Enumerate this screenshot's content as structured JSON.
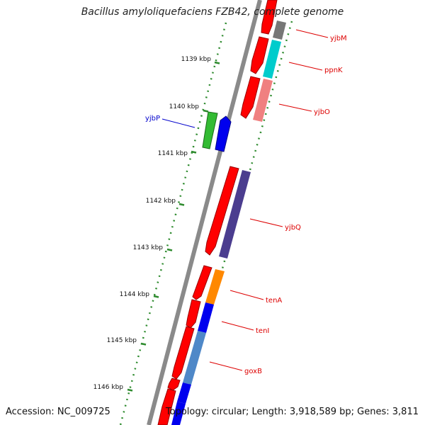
{
  "title": "Bacillus amyloliquefaciens FZB42, complete genome",
  "footer": {
    "accession": "Accession: NC_009725",
    "topology": "Topology: circular; Length: 3,918,589 bp; Genes: 3,811"
  },
  "colors": {
    "backbone": "#8a8a8a",
    "tick": "#2e8b2e",
    "forward_label": "#dd0000",
    "reverse_label": "#0000cc"
  },
  "ruler": [
    "1139 kbp",
    "1140 kbp",
    "1141 kbp",
    "1142 kbp",
    "1143 kbp",
    "1144 kbp",
    "1145 kbp",
    "1146 kbp"
  ],
  "genes": [
    {
      "name": "yjbM",
      "color": "#777777",
      "strand": "forward"
    },
    {
      "name": "ppnK",
      "color": "#00cccc",
      "strand": "forward"
    },
    {
      "name": "yjbO",
      "color": "#f08080",
      "strand": "forward"
    },
    {
      "name": "yjbP",
      "color": "#33bb33",
      "strand": "reverse"
    },
    {
      "name": "yjbQ",
      "color": "#4b3d8f",
      "strand": "forward"
    },
    {
      "name": "tenA",
      "color": "#ff8800",
      "strand": "forward"
    },
    {
      "name": "tenI",
      "color": "#0000ee",
      "strand": "forward"
    },
    {
      "name": "goxB",
      "color": "#4f88c8",
      "strand": "forward"
    }
  ]
}
